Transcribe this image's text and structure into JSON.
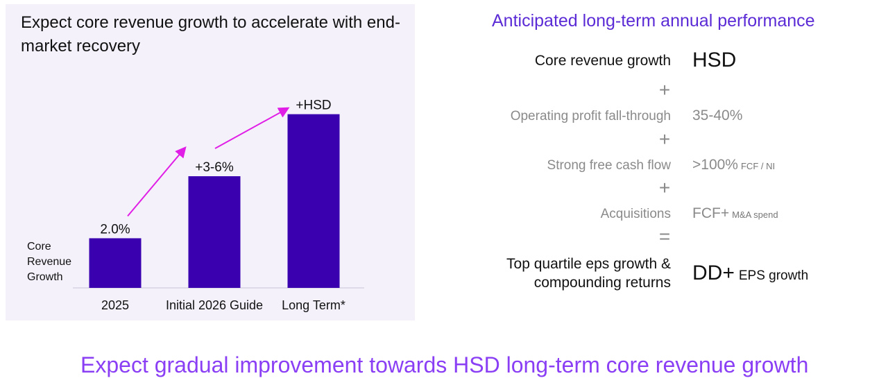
{
  "left_panel": {
    "title": "Expect core revenue growth to accelerate with end-market recovery"
  },
  "chart_data": {
    "type": "bar",
    "categories": [
      "2025",
      "Initial 2026 Guide",
      "Long Term*"
    ],
    "values": [
      2.0,
      4.5,
      7.0
    ],
    "data_labels": [
      "2.0%",
      "+3-6%",
      "+HSD"
    ],
    "ylabel": "Core Revenue Growth",
    "bar_color": "#3a00b0",
    "arrow_color": "#e01ee6",
    "ylim": [
      0,
      7.8
    ],
    "grid": false
  },
  "right_panel": {
    "title": "Anticipated long-term annual performance",
    "rows": [
      {
        "label": "Core revenue growth",
        "value": "HSD",
        "note": ""
      },
      {
        "label": "Operating profit fall-through",
        "value": "35-40%",
        "note": ""
      },
      {
        "label": "Strong free cash flow",
        "value": ">100%",
        "note": "FCF / NI"
      },
      {
        "label": "Acquisitions",
        "value": "FCF+",
        "note": "M&A spend"
      },
      {
        "label": "Top quartile eps growth & compounding returns",
        "label_line1": "Top quartile eps growth &",
        "label_line2": "compounding returns",
        "value": "DD+",
        "note": "EPS growth"
      }
    ],
    "operators": [
      "+",
      "+",
      "+",
      "="
    ]
  },
  "footer": "Expect gradual improvement towards HSD long-term core revenue growth",
  "colors": {
    "accent_purple": "#5b2bd6",
    "footer_purple": "#8a3ff5",
    "panel_bg": "#f4f1fb"
  }
}
